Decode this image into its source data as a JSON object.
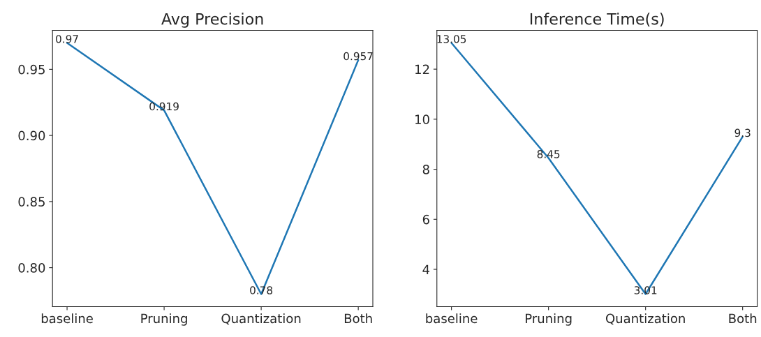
{
  "chart_data": [
    {
      "type": "line",
      "title": "Avg Precision",
      "categories": [
        "baseline",
        "Pruning",
        "Quantization",
        "Both"
      ],
      "series": [
        {
          "color": "#1f77b4",
          "values": [
            0.97,
            0.919,
            0.78,
            0.957
          ]
        }
      ],
      "ylim": [
        0.7705,
        0.9795
      ],
      "yticks": [
        {
          "value": 0.8,
          "label": "0.80"
        },
        {
          "value": 0.85,
          "label": "0.85"
        },
        {
          "value": 0.9,
          "label": "0.90"
        },
        {
          "value": 0.95,
          "label": "0.95"
        }
      ],
      "data_labels": true,
      "grid": false,
      "legend": false
    },
    {
      "type": "line",
      "title": "Inference Time(s)",
      "categories": [
        "baseline",
        "Pruning",
        "Quantization",
        "Both"
      ],
      "series": [
        {
          "color": "#1f77b4",
          "values": [
            13.05,
            8.45,
            3.01,
            9.3
          ]
        }
      ],
      "ylim": [
        2.508,
        13.552
      ],
      "yticks": [
        4,
        6,
        8,
        10,
        12
      ],
      "data_labels": true,
      "grid": false,
      "legend": false
    }
  ]
}
